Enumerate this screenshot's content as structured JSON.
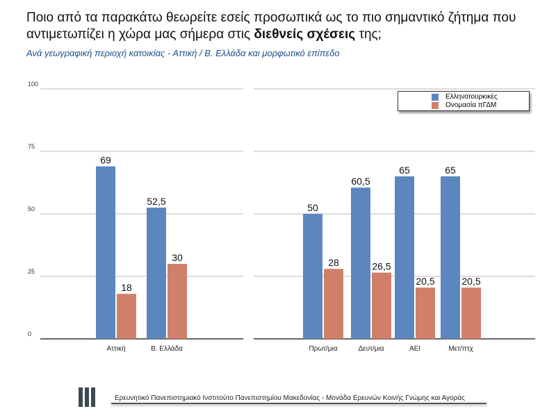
{
  "title_pre": "Ποιο από τα παρακάτω θεωρείτε εσείς προσωπικά ως το πιο σημαντικό ζήτημα που αντιμετωπίζει η χώρα μας σήμερα στις ",
  "title_bold": "διεθνείς σχέσεις",
  "title_post": " της;",
  "subtitle": "Ανά γεωγραφική περιοχή κατοικίας - Αττική / Β. Ελλάδα και μορφωτικό επίπεδο",
  "footer": "Ερευνητικό Πανεπιστημιακό Ινστιτούτο Πανεπιστημίου Μακεδονίας - Μονάδα Ερευνών Κοινής Γνώμης και Αγοράς",
  "chart_data": {
    "type": "bar",
    "yticks": [
      "0",
      "25",
      "50",
      "75",
      "100"
    ],
    "ylim": [
      0,
      100
    ],
    "legend_position": "top-right",
    "series_names": [
      "Ελληνοτουρκικές",
      "Ονομασία πΓΔΜ"
    ],
    "colors": [
      "#5b87be",
      "#d07f6a"
    ],
    "panels": [
      {
        "categories": [
          "Αττική",
          "Β. Ελλάδα"
        ],
        "series": [
          {
            "name": "Ελληνοτουρκικές",
            "values": [
              69,
              52.5
            ],
            "labels": [
              "69",
              "52,5"
            ]
          },
          {
            "name": "Ονομασία πΓΔΜ",
            "values": [
              18,
              30
            ],
            "labels": [
              "18",
              "30"
            ]
          }
        ]
      },
      {
        "categories": [
          "Πρωτ/μια",
          "Δευτ/μια",
          "ΑΕΙ",
          "Μετ/πτχ"
        ],
        "series": [
          {
            "name": "Ελληνοτουρκικές",
            "values": [
              50,
              60.5,
              65,
              65
            ],
            "labels": [
              "50",
              "60,5",
              "65",
              "65"
            ]
          },
          {
            "name": "Ονομασία πΓΔΜ",
            "values": [
              28,
              26.5,
              20.5,
              20.5
            ],
            "labels": [
              "28",
              "26,5",
              "20,5",
              "20,5"
            ]
          }
        ]
      }
    ]
  }
}
